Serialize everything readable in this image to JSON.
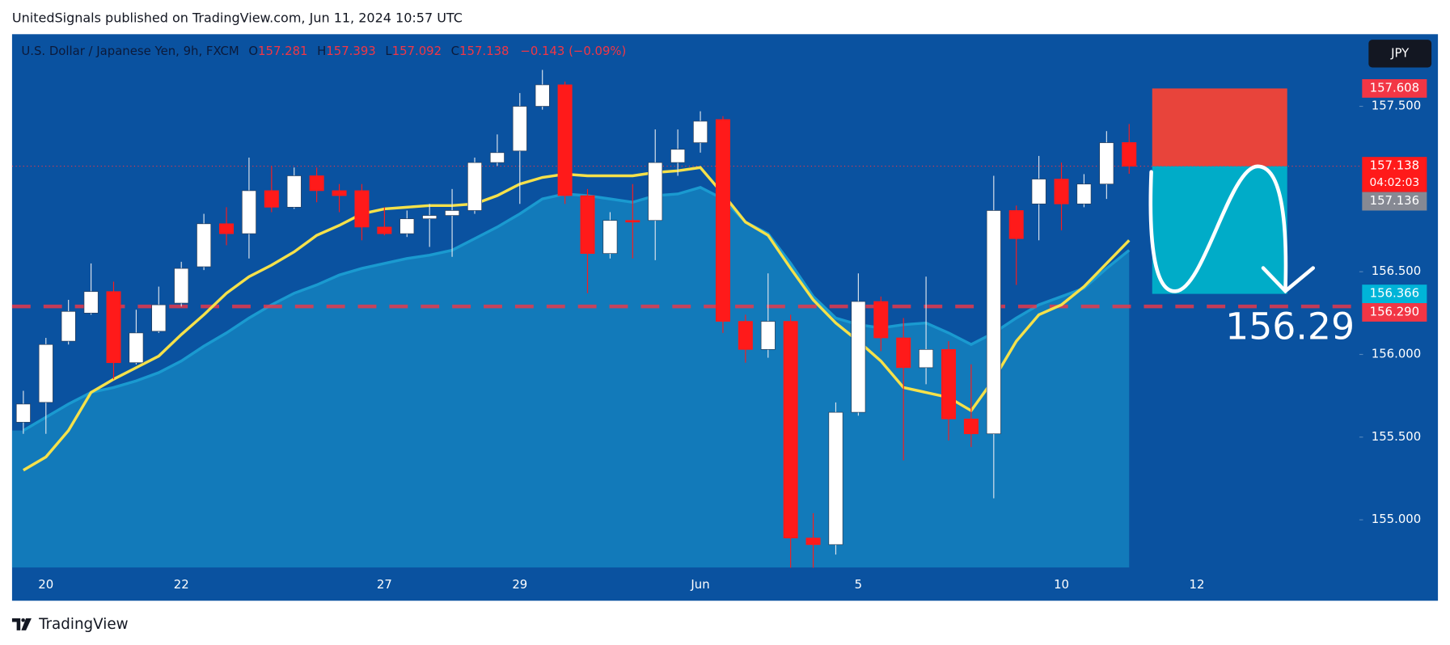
{
  "header": {
    "text": "UnitedSignals published on TradingView.com, Jun 11, 2024 10:57 UTC"
  },
  "footer": {
    "brand": "TradingView"
  },
  "chart_data": {
    "type": "candlestick",
    "symbol": "U.S. Dollar / Japanese Yen, 9h, FXCM",
    "currency": "JPY",
    "ohlc_legend": [
      {
        "key": "O",
        "value": "157.281"
      },
      {
        "key": "H",
        "value": "157.393"
      },
      {
        "key": "L",
        "value": "157.092"
      },
      {
        "key": "C",
        "value": "157.138"
      }
    ],
    "change": "−0.143 (−0.09%)",
    "up_color": "#ffffff",
    "down_color": "#ff1a1a",
    "open": [
      155.59,
      155.71,
      156.08,
      156.25,
      156.38,
      155.95,
      156.14,
      156.31,
      156.53,
      156.79,
      156.73,
      156.99,
      156.89,
      157.08,
      156.99,
      156.99,
      156.77,
      156.73,
      156.82,
      156.84,
      156.87,
      157.16,
      157.23,
      157.5,
      157.63,
      156.96,
      156.61,
      156.81,
      156.81,
      157.16,
      157.28,
      157.42,
      156.2,
      156.03,
      156.2,
      154.89,
      154.85,
      155.65,
      156.32,
      156.1,
      155.92,
      156.03,
      155.61,
      155.52,
      156.87,
      156.91,
      157.06,
      156.91,
      157.03,
      157.281
    ],
    "high": [
      155.78,
      156.1,
      156.33,
      156.55,
      156.44,
      156.27,
      156.41,
      156.56,
      156.85,
      156.89,
      157.19,
      157.14,
      157.13,
      157.13,
      157.03,
      157.03,
      156.89,
      156.87,
      156.91,
      157.0,
      157.19,
      157.33,
      157.58,
      157.72,
      157.65,
      157.0,
      156.86,
      157.03,
      157.36,
      157.36,
      157.47,
      157.44,
      156.24,
      156.49,
      156.24,
      155.04,
      155.71,
      156.49,
      156.35,
      156.22,
      156.47,
      156.08,
      155.94,
      157.08,
      156.9,
      157.2,
      157.16,
      157.09,
      157.35,
      157.393
    ],
    "low": [
      155.52,
      155.52,
      156.06,
      156.24,
      155.85,
      155.94,
      156.13,
      156.29,
      156.51,
      156.66,
      156.58,
      156.86,
      156.88,
      156.92,
      156.86,
      156.69,
      156.72,
      156.71,
      156.65,
      156.59,
      156.85,
      157.14,
      156.91,
      157.48,
      156.91,
      156.37,
      156.58,
      156.58,
      156.57,
      157.08,
      157.22,
      156.13,
      155.95,
      155.98,
      154.71,
      154.71,
      154.79,
      155.63,
      156.02,
      155.36,
      155.82,
      155.48,
      155.44,
      155.13,
      156.42,
      156.69,
      156.75,
      156.89,
      156.94,
      157.092
    ],
    "close": [
      155.7,
      156.06,
      156.26,
      156.38,
      155.95,
      156.13,
      156.3,
      156.52,
      156.79,
      156.73,
      156.99,
      156.89,
      157.08,
      156.99,
      156.96,
      156.77,
      156.73,
      156.82,
      156.84,
      156.87,
      157.16,
      157.22,
      157.5,
      157.63,
      156.96,
      156.61,
      156.81,
      156.8,
      157.16,
      157.24,
      157.41,
      156.2,
      156.03,
      156.2,
      154.89,
      154.85,
      155.65,
      156.32,
      156.1,
      155.92,
      156.03,
      155.61,
      155.52,
      156.87,
      156.7,
      157.06,
      156.91,
      157.03,
      157.28,
      157.138
    ],
    "ma": {
      "color": "#f5e14a",
      "values": [
        155.3,
        155.38,
        155.54,
        155.77,
        155.85,
        155.92,
        155.99,
        156.12,
        156.24,
        156.37,
        156.47,
        156.54,
        156.62,
        156.72,
        156.78,
        156.85,
        156.88,
        156.89,
        156.9,
        156.9,
        156.91,
        156.96,
        157.03,
        157.07,
        157.09,
        157.08,
        157.08,
        157.08,
        157.1,
        157.11,
        157.13,
        156.97,
        156.8,
        156.72,
        156.52,
        156.33,
        156.19,
        156.08,
        155.96,
        155.8,
        155.77,
        155.74,
        155.66,
        155.85,
        156.08,
        156.24,
        156.3,
        156.41,
        156.55,
        156.69
      ]
    },
    "band": {
      "color": "#1a9ad0",
      "values": [
        155.54,
        155.62,
        155.7,
        155.77,
        155.8,
        155.84,
        155.89,
        155.96,
        156.05,
        156.13,
        156.22,
        156.3,
        156.37,
        156.42,
        156.48,
        156.52,
        156.55,
        156.58,
        156.6,
        156.63,
        156.7,
        156.77,
        156.85,
        156.94,
        156.97,
        156.96,
        156.94,
        156.92,
        156.96,
        156.97,
        157.01,
        156.94,
        156.8,
        156.73,
        156.55,
        156.35,
        156.22,
        156.18,
        156.16,
        156.18,
        156.19,
        156.13,
        156.06,
        156.13,
        156.22,
        156.3,
        156.35,
        156.4,
        156.52,
        156.63
      ]
    },
    "xlim": [
      -0.5,
      59.2
    ],
    "xticks": [
      {
        "value": 1,
        "label": "20"
      },
      {
        "value": 7,
        "label": "22"
      },
      {
        "value": 16,
        "label": "27"
      },
      {
        "value": 22,
        "label": "29"
      },
      {
        "value": 30,
        "label": "Jun"
      },
      {
        "value": 37,
        "label": "5"
      },
      {
        "value": 46,
        "label": "10"
      },
      {
        "value": 52,
        "label": "12"
      }
    ],
    "ylim": [
      154.712,
      157.936
    ],
    "yticks": [
      {
        "value": 155,
        "label": "155.000"
      },
      {
        "value": 155.5,
        "label": "155.500"
      },
      {
        "value": 156,
        "label": "156.000"
      },
      {
        "value": 156.5,
        "label": "156.500"
      },
      {
        "value": 157.5,
        "label": "157.500"
      }
    ],
    "price_labels": [
      {
        "value": 157.608,
        "label": "157.608",
        "color": "#f23645"
      },
      {
        "value": 157.138,
        "label": "157.138",
        "color": "#ff1a1a"
      },
      {
        "value": 157.136,
        "label": "157.136",
        "color": "#868993"
      },
      {
        "value": 156.366,
        "label": "156.366",
        "color": "#00b4d8"
      },
      {
        "value": 156.29,
        "label": "156.290",
        "color": "#f23645"
      }
    ],
    "countdown": "04:02:03",
    "target_annotation": "156.29"
  }
}
